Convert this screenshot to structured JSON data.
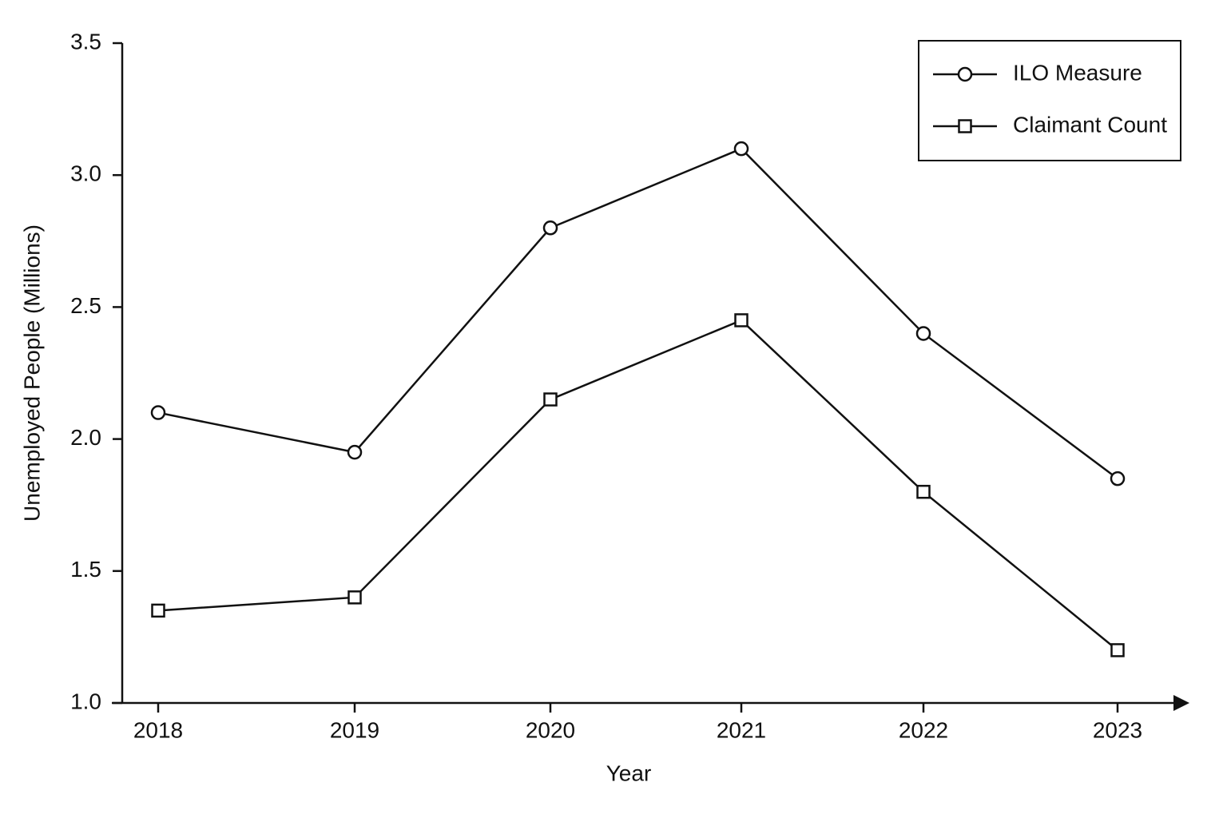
{
  "chart_data": {
    "type": "line",
    "x_label": "Year",
    "y_label": "Unemployed People (Millions)",
    "categories": [
      "2018",
      "2019",
      "2020",
      "2021",
      "2022",
      "2023"
    ],
    "series": [
      {
        "name": "ILO Measure",
        "color": "#111111",
        "marker": "circle",
        "values": [
          2.1,
          1.95,
          2.8,
          3.1,
          2.4,
          1.85
        ]
      },
      {
        "name": "Claimant Count",
        "color": "#111111",
        "marker": "square",
        "values": [
          1.35,
          1.4,
          2.15,
          2.45,
          1.8,
          1.2
        ]
      }
    ],
    "ylim": [
      1.0,
      3.5
    ],
    "yticks": [
      {
        "value": 1,
        "label": "1.0"
      },
      1.5,
      {
        "value": 2,
        "label": "2.0"
      },
      2.5,
      {
        "value": 3,
        "label": "3.0"
      },
      3.5
    ],
    "grid": false,
    "legend": "upper right"
  }
}
